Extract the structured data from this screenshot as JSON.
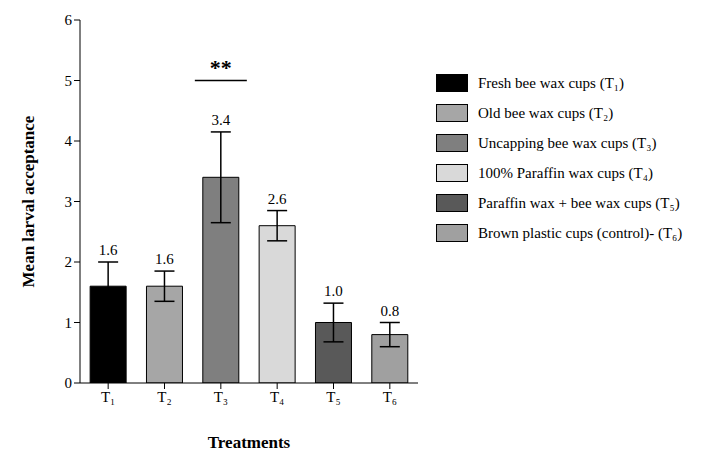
{
  "chart_data": {
    "type": "bar",
    "categories": [
      "T₁",
      "T₂",
      "T₃",
      "T₄",
      "T₅",
      "T₆"
    ],
    "values": [
      1.6,
      1.6,
      3.4,
      2.6,
      1.0,
      0.8
    ],
    "value_labels": [
      "1.6",
      "1.6",
      "3.4",
      "2.6",
      "1.0",
      "0.8"
    ],
    "errors": [
      0.4,
      0.25,
      0.75,
      0.25,
      0.32,
      0.2
    ],
    "colors": [
      "#000000",
      "#a6a6a6",
      "#7f7f7f",
      "#d9d9d9",
      "#595959",
      "#a0a0a0"
    ],
    "legend_labels": [
      "Fresh bee wax cups (T₁)",
      "Old bee wax cups (T₂)",
      "Uncapping bee wax cups (T₃)",
      "100% Paraffin wax cups (T₄)",
      "Paraffin wax + bee wax cups (T₅)",
      "Brown plastic cups (control)- (T₆)"
    ],
    "x_label": "Treatments",
    "y_label": "Mean larval acceptance",
    "ylim": [
      0,
      6
    ],
    "yticks": [
      0,
      1,
      2,
      3,
      4,
      5,
      6
    ],
    "grid": false,
    "data_labels": true,
    "legend": "right",
    "annotations": [
      {
        "text": "**",
        "x": "T₃",
        "y": 5.0
      }
    ]
  }
}
